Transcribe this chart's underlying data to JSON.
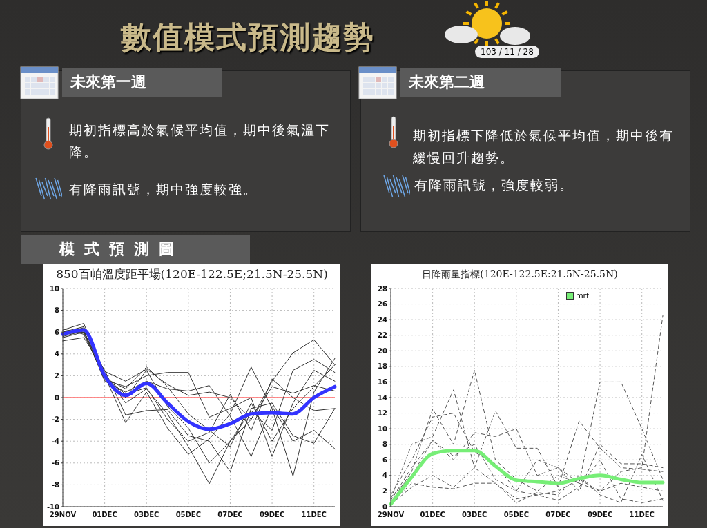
{
  "chart_data": [
    {
      "type": "other",
      "title": "數值模式預測趨勢",
      "subtitle": "103 / 11 / 28",
      "annotations": [
        "未來第一週",
        "期初指標高於氣候平均值，期中後氣溫下降。",
        "有降雨訊號，期中強度較強。",
        "未來第二週",
        "期初指標下降低於氣候平均值，期中後有緩慢回升趨勢。",
        "有降雨訊號，強度較弱。",
        "模式預測圖"
      ]
    },
    {
      "type": "line",
      "title": "850百帕溫度距平場(120E-122.5E;21.5N-25.5N)",
      "categories": [
        "29NOV",
        null,
        "01DEC",
        null,
        "03DEC",
        null,
        "05DEC",
        null,
        "07DEC",
        null,
        "09DEC",
        null,
        "11DEC",
        null
      ],
      "ylim": [
        -10,
        10
      ],
      "yticks": [
        -10,
        -8,
        -6,
        -4,
        -2,
        0,
        2,
        4,
        6,
        8,
        10
      ],
      "grid": true,
      "legend": false,
      "marker": "none",
      "ref_lines": [
        {
          "axis": "y",
          "value": 0,
          "color": "#ff6666"
        }
      ],
      "series": [
        {
          "color": "#333333",
          "values": [
            6.0,
            6.5,
            1.8,
            0.8,
            2.8,
            1.0,
            -1.5,
            -3.0,
            -4.5,
            -0.5,
            -4.0,
            -1.0,
            1.0,
            3.0
          ]
        },
        {
          "color": "#333333",
          "values": [
            5.5,
            6.0,
            2.2,
            -0.5,
            0.8,
            -1.5,
            -4.5,
            -7.9,
            -4.0,
            -2.0,
            1.5,
            4.1,
            5.3,
            3.0
          ]
        },
        {
          "color": "#333333",
          "values": [
            6.2,
            6.8,
            2.0,
            -2.3,
            0.5,
            -2.8,
            -5.2,
            -3.8,
            -1.5,
            2.8,
            -1.0,
            -7.2,
            0.5,
            3.6
          ]
        },
        {
          "color": "#333333",
          "values": [
            5.8,
            6.0,
            1.6,
            1.0,
            2.0,
            2.3,
            2.3,
            -1.8,
            -1.0,
            0.0,
            -5.4,
            -0.5,
            2.5,
            1.5
          ]
        },
        {
          "color": "#333333",
          "values": [
            5.2,
            5.5,
            2.5,
            -1.6,
            -1.2,
            -1.1,
            -3.5,
            -4.0,
            -6.8,
            -1.0,
            -0.5,
            -3.5,
            -4.2,
            -1.0
          ]
        },
        {
          "color": "#333333",
          "values": [
            6.0,
            6.2,
            1.5,
            0.5,
            1.5,
            0.8,
            0.6,
            1.1,
            -1.7,
            -5.4,
            -0.8,
            -4.0,
            -3.0,
            -4.7
          ]
        },
        {
          "color": "#333333",
          "values": [
            5.6,
            6.1,
            2.1,
            0.0,
            2.5,
            -0.8,
            -2.8,
            -6.0,
            -4.0,
            -1.2,
            -3.0,
            2.5,
            3.5,
            2.3
          ]
        },
        {
          "color": "#333333",
          "values": [
            6.3,
            5.8,
            1.9,
            0.3,
            0.9,
            -2.0,
            -4.0,
            -3.2,
            0.3,
            -3.0,
            1.7,
            0.0,
            -1.2,
            -1.0
          ]
        },
        {
          "color": "#333333",
          "values": [
            5.9,
            6.4,
            2.4,
            1.5,
            2.6,
            1.2,
            0.2,
            0.5,
            0.0,
            -2.0,
            1.0,
            0.4,
            1.1,
            0.6
          ]
        },
        {
          "color": "#3333ff",
          "values": [
            5.8,
            6.2,
            2.0,
            0.2,
            1.3,
            -0.5,
            -2.2,
            -2.9,
            -2.4,
            -1.5,
            -1.4,
            -1.5,
            0.0,
            1.0
          ]
        }
      ]
    },
    {
      "type": "line",
      "title": "日降雨量指標(120E-122.5E:21.5N-25.5N)",
      "categories": [
        "29NOV",
        null,
        "01DEC",
        null,
        "03DEC",
        null,
        "05DEC",
        null,
        "07DEC",
        null,
        "09DEC",
        null,
        "11DEC",
        null
      ],
      "ylim": [
        0,
        28
      ],
      "yticks": [
        0,
        2,
        4,
        6,
        8,
        10,
        12,
        14,
        16,
        18,
        20,
        22,
        24,
        26,
        28
      ],
      "grid": true,
      "legend": "top right",
      "marker": "none",
      "series": [
        {
          "color": "#555555",
          "line_style": "dashed",
          "values": [
            0.5,
            4.5,
            12.5,
            8.0,
            17.5,
            6.0,
            3.5,
            2.0,
            4.0,
            3.0,
            16.0,
            16.0,
            10.0,
            3.5
          ]
        },
        {
          "color": "#555555",
          "line_style": "dashed",
          "values": [
            1.0,
            8.0,
            9.0,
            15.0,
            5.0,
            12.3,
            7.5,
            7.5,
            2.5,
            11.0,
            7.5,
            5.0,
            4.8,
            4.5
          ]
        },
        {
          "color": "#555555",
          "line_style": "dashed",
          "values": [
            0.8,
            5.0,
            8.5,
            6.0,
            9.5,
            9.0,
            10.0,
            4.0,
            5.0,
            3.0,
            2.0,
            4.5,
            5.0,
            24.5
          ]
        },
        {
          "color": "#555555",
          "line_style": "dashed",
          "values": [
            0.3,
            2.5,
            4.0,
            2.5,
            5.0,
            3.0,
            1.0,
            1.5,
            0.8,
            2.5,
            6.0,
            1.0,
            0.5,
            1.0
          ]
        },
        {
          "color": "#555555",
          "line_style": "dashed",
          "values": [
            1.5,
            6.0,
            11.5,
            12.0,
            7.0,
            5.5,
            2.0,
            1.5,
            2.0,
            3.5,
            2.0,
            3.0,
            2.5,
            2.0
          ]
        },
        {
          "color": "#555555",
          "line_style": "dashed",
          "values": [
            0.5,
            3.0,
            2.5,
            2.3,
            3.0,
            3.0,
            0.5,
            1.8,
            1.5,
            4.0,
            1.5,
            0.5,
            6.7,
            0.8
          ]
        },
        {
          "color": "#555555",
          "line_style": "dashed",
          "values": [
            1.2,
            4.0,
            8.5,
            6.5,
            8.0,
            3.5,
            2.0,
            6.0,
            5.0,
            2.0,
            8.0,
            5.5,
            5.5,
            5.0
          ]
        },
        {
          "name": "mrf",
          "color": "#77ee77",
          "line_style": "solid",
          "values": [
            0.3,
            3.8,
            6.8,
            7.2,
            7.2,
            5.2,
            3.4,
            3.2,
            3.0,
            3.6,
            4.0,
            3.5,
            3.1,
            3.1
          ]
        }
      ]
    }
  ]
}
